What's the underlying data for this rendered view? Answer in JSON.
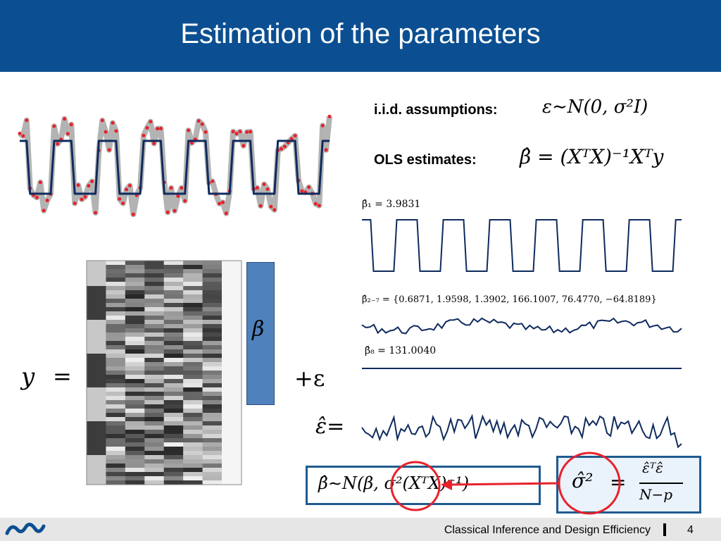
{
  "slide": {
    "title": "Estimation of the parameters",
    "page_number": "4",
    "footer_text": "Classical Inference and Design Efficiency"
  },
  "assumptions": {
    "label": "i.i.d. assumptions:",
    "formula": "ε∼N(0, σ²I)"
  },
  "ols": {
    "label": "OLS estimates:",
    "formula": "β̂ = (XᵀX)⁻¹Xᵀy"
  },
  "estimates": {
    "beta1": "β̂₁ = 3.9831",
    "beta2_7": "β̂₂₋₇ = {0.6871, 1.9598, 1.3902, 166.1007, 76.4770, −64.8189}",
    "beta8": "β̂₈ = 131.0040"
  },
  "equation": {
    "y": "y",
    "equals": "=",
    "beta": "β",
    "plus_eps": "+ε",
    "eps_hat": "ε̂="
  },
  "distribution_box": {
    "formula": "β̂∼N(β, σ²(XᵀX)⁻¹)"
  },
  "sigma_box": {
    "lhs": "σ̂²",
    "eq": "=",
    "numerator": "ε̂ᵀε̂",
    "denominator": "N−p"
  },
  "colors": {
    "header": "#0b4f92",
    "model_line": "#0f2b5e",
    "data_points": "#e8212a",
    "highlight_circle": "#e8212a",
    "beta_bar": "#4f81bd"
  }
}
